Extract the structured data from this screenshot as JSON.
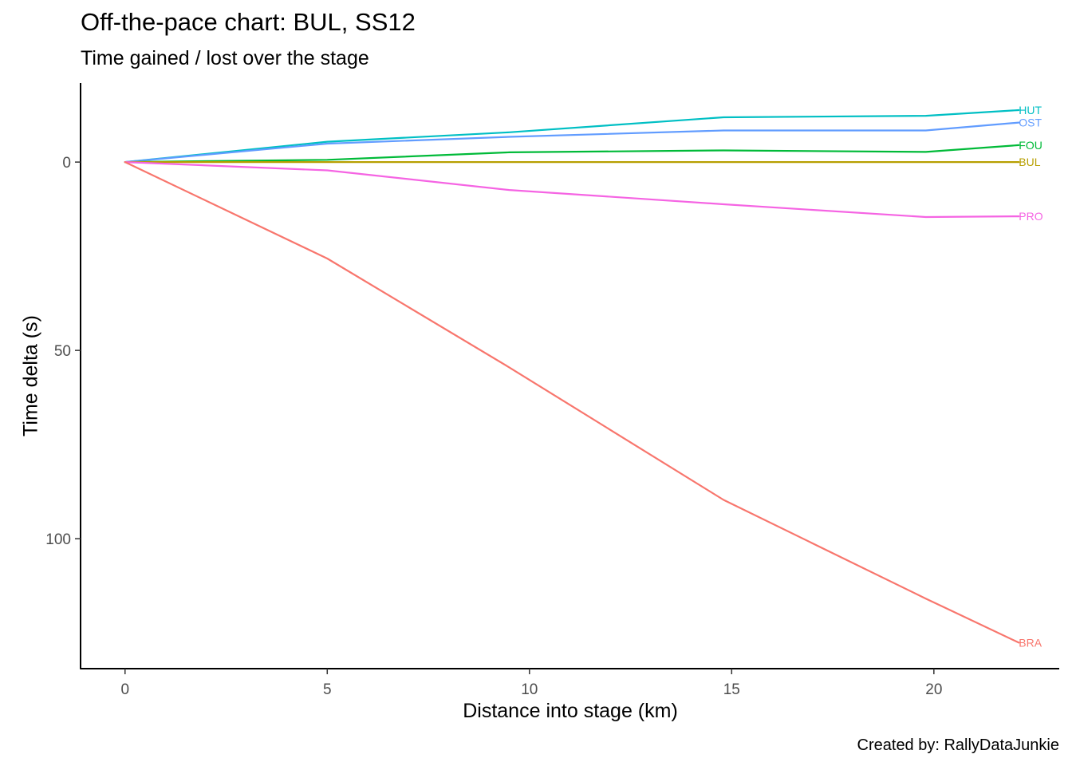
{
  "chart_data": {
    "type": "line",
    "title": "Off-the-pace chart: BUL, SS12",
    "subtitle": "Time gained / lost over the stage",
    "xlabel": "Distance into stage (km)",
    "ylabel": "Time delta (s)",
    "caption": "Created by: RallyDataJunkie",
    "xlim": [
      -1.1,
      23.1
    ],
    "ylim": [
      -21,
      134.5
    ],
    "y_reversed": true,
    "x_ticks": [
      0,
      5,
      10,
      15,
      20
    ],
    "x_tick_labels": [
      "0",
      "5",
      "10",
      "15",
      "20"
    ],
    "y_ticks": [
      0,
      50,
      100
    ],
    "y_tick_labels": [
      "0",
      "50",
      "100"
    ],
    "grid": false,
    "legend": "none (direct end labels)",
    "x": [
      0,
      5,
      9.5,
      14.8,
      19.8,
      22.1
    ],
    "series": [
      {
        "name": "HUT",
        "color": "#00BFC4",
        "values": [
          0,
          -5.4,
          -7.9,
          -11.9,
          -12.3,
          -13.8
        ]
      },
      {
        "name": "OST",
        "color": "#619CFF",
        "values": [
          0,
          -4.9,
          -6.7,
          -8.4,
          -8.4,
          -10.5
        ]
      },
      {
        "name": "FOU",
        "color": "#00BA38",
        "values": [
          0,
          -0.6,
          -2.6,
          -3.1,
          -2.7,
          -4.5
        ]
      },
      {
        "name": "BUL",
        "color": "#B79F00",
        "values": [
          0,
          0,
          0,
          0,
          0,
          0
        ]
      },
      {
        "name": "PRO",
        "color": "#F564E3",
        "values": [
          0,
          2.2,
          7.4,
          11.2,
          14.6,
          14.4
        ]
      },
      {
        "name": "BRA",
        "color": "#F8766D",
        "values": [
          0,
          25.6,
          54.5,
          89.7,
          115.9,
          127.6
        ]
      }
    ]
  }
}
